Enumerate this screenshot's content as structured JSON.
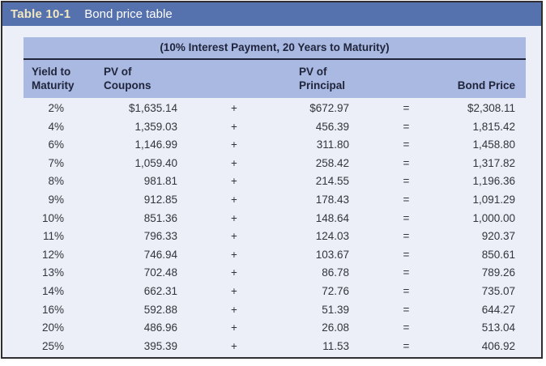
{
  "title_bar": {
    "label": "Table 10-1",
    "title": "Bond price table"
  },
  "table": {
    "subtitle": "(10% Interest Payment, 20 Years to Maturity)",
    "columns": {
      "yield_line1": "Yield to",
      "yield_line2": "Maturity",
      "coupons_line1": "PV of",
      "coupons_line2": "Coupons",
      "principal_line1": "PV of",
      "principal_line2": "Principal",
      "bond_price": "Bond Price"
    },
    "plus_sign": "+",
    "equals_sign": "="
  },
  "chart_data": {
    "type": "table",
    "title": "Table 10-1 Bond price table",
    "subtitle": "(10% Interest Payment, 20 Years to Maturity)",
    "columns": [
      "Yield to Maturity",
      "PV of Coupons",
      "+",
      "PV of Principal",
      "=",
      "Bond Price"
    ],
    "rows": [
      {
        "yield": "2%",
        "pv_coupons": "$1,635.14",
        "pv_principal": "$672.97",
        "bond_price": "$2,308.11"
      },
      {
        "yield": "4%",
        "pv_coupons": "1,359.03",
        "pv_principal": "456.39",
        "bond_price": "1,815.42"
      },
      {
        "yield": "6%",
        "pv_coupons": "1,146.99",
        "pv_principal": "311.80",
        "bond_price": "1,458.80"
      },
      {
        "yield": "7%",
        "pv_coupons": "1,059.40",
        "pv_principal": "258.42",
        "bond_price": "1,317.82"
      },
      {
        "yield": "8%",
        "pv_coupons": "981.81",
        "pv_principal": "214.55",
        "bond_price": "1,196.36"
      },
      {
        "yield": "9%",
        "pv_coupons": "912.85",
        "pv_principal": "178.43",
        "bond_price": "1,091.29"
      },
      {
        "yield": "10%",
        "pv_coupons": "851.36",
        "pv_principal": "148.64",
        "bond_price": "1,000.00"
      },
      {
        "yield": "11%",
        "pv_coupons": "796.33",
        "pv_principal": "124.03",
        "bond_price": "920.37"
      },
      {
        "yield": "12%",
        "pv_coupons": "746.94",
        "pv_principal": "103.67",
        "bond_price": "850.61"
      },
      {
        "yield": "13%",
        "pv_coupons": "702.48",
        "pv_principal": "86.78",
        "bond_price": "789.26"
      },
      {
        "yield": "14%",
        "pv_coupons": "662.31",
        "pv_principal": "72.76",
        "bond_price": "735.07"
      },
      {
        "yield": "16%",
        "pv_coupons": "592.88",
        "pv_principal": "51.39",
        "bond_price": "644.27"
      },
      {
        "yield": "20%",
        "pv_coupons": "486.96",
        "pv_principal": "26.08",
        "bond_price": "513.04"
      },
      {
        "yield": "25%",
        "pv_coupons": "395.39",
        "pv_principal": "11.53",
        "bond_price": "406.92"
      }
    ]
  },
  "colors": {
    "title_bar_bg": "#5571ae",
    "title_label_text": "#f2e8c0",
    "title_text": "#ffffff",
    "header_band_bg": "#aab9e2",
    "page_bg": "#edeff8",
    "navy_text": "#20253c",
    "data_text": "#33353c",
    "outer_border": "#2e2e30"
  }
}
